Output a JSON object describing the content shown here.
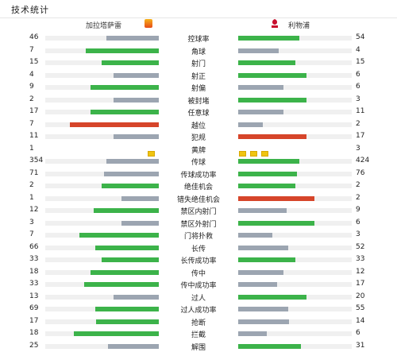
{
  "header": {
    "title": "技术统计"
  },
  "teams": {
    "home": "加拉塔萨雷",
    "away": "利物浦"
  },
  "colors": {
    "green": "#3cb34a",
    "grey": "#9ca5b1",
    "red": "#d6452a",
    "yellow": "#f0c40f"
  },
  "stats": [
    {
      "label": "控球率",
      "home": "46",
      "away": "54",
      "hw": 0.46,
      "aw": 0.54,
      "hc": "grey",
      "ac": "green"
    },
    {
      "label": "角球",
      "home": "7",
      "away": "4",
      "hw": 0.64,
      "aw": 0.36,
      "hc": "green",
      "ac": "grey"
    },
    {
      "label": "射门",
      "home": "15",
      "away": "15",
      "hw": 0.5,
      "aw": 0.5,
      "hc": "green",
      "ac": "green"
    },
    {
      "label": "射正",
      "home": "4",
      "away": "6",
      "hw": 0.4,
      "aw": 0.6,
      "hc": "grey",
      "ac": "green"
    },
    {
      "label": "射偏",
      "home": "9",
      "away": "6",
      "hw": 0.6,
      "aw": 0.4,
      "hc": "green",
      "ac": "grey"
    },
    {
      "label": "被封堵",
      "home": "2",
      "away": "3",
      "hw": 0.4,
      "aw": 0.6,
      "hc": "grey",
      "ac": "green"
    },
    {
      "label": "任意球",
      "home": "17",
      "away": "11",
      "hw": 0.6,
      "aw": 0.4,
      "hc": "green",
      "ac": "grey"
    },
    {
      "label": "越位",
      "home": "7",
      "away": "2",
      "hw": 0.78,
      "aw": 0.22,
      "hc": "red",
      "ac": "grey"
    },
    {
      "label": "犯规",
      "home": "11",
      "away": "17",
      "hw": 0.4,
      "aw": 0.6,
      "hc": "grey",
      "ac": "red"
    },
    {
      "label": "黄牌",
      "home": "1",
      "away": "3",
      "cards": true
    },
    {
      "label": "传球",
      "home": "354",
      "away": "424",
      "hw": 0.46,
      "aw": 0.54,
      "hc": "grey",
      "ac": "green"
    },
    {
      "label": "传球成功率",
      "home": "71",
      "away": "76",
      "hw": 0.48,
      "aw": 0.52,
      "hc": "grey",
      "ac": "green"
    },
    {
      "label": "绝佳机会",
      "home": "2",
      "away": "2",
      "hw": 0.5,
      "aw": 0.5,
      "hc": "green",
      "ac": "green"
    },
    {
      "label": "错失绝佳机会",
      "home": "1",
      "away": "2",
      "hw": 0.33,
      "aw": 0.67,
      "hc": "grey",
      "ac": "red"
    },
    {
      "label": "禁区内射门",
      "home": "12",
      "away": "9",
      "hw": 0.57,
      "aw": 0.43,
      "hc": "green",
      "ac": "grey"
    },
    {
      "label": "禁区外射门",
      "home": "3",
      "away": "6",
      "hw": 0.33,
      "aw": 0.67,
      "hc": "grey",
      "ac": "green"
    },
    {
      "label": "门将扑救",
      "home": "7",
      "away": "3",
      "hw": 0.7,
      "aw": 0.3,
      "hc": "green",
      "ac": "grey"
    },
    {
      "label": "长传",
      "home": "66",
      "away": "52",
      "hw": 0.56,
      "aw": 0.44,
      "hc": "green",
      "ac": "grey"
    },
    {
      "label": "长传成功率",
      "home": "33",
      "away": "33",
      "hw": 0.5,
      "aw": 0.5,
      "hc": "green",
      "ac": "green"
    },
    {
      "label": "传中",
      "home": "18",
      "away": "12",
      "hw": 0.6,
      "aw": 0.4,
      "hc": "green",
      "ac": "grey"
    },
    {
      "label": "传中成功率",
      "home": "33",
      "away": "17",
      "hw": 0.66,
      "aw": 0.34,
      "hc": "green",
      "ac": "grey"
    },
    {
      "label": "过人",
      "home": "13",
      "away": "20",
      "hw": 0.4,
      "aw": 0.6,
      "hc": "grey",
      "ac": "green"
    },
    {
      "label": "过人成功率",
      "home": "69",
      "away": "55",
      "hw": 0.56,
      "aw": 0.44,
      "hc": "green",
      "ac": "grey"
    },
    {
      "label": "抢断",
      "home": "17",
      "away": "14",
      "hw": 0.55,
      "aw": 0.45,
      "hc": "green",
      "ac": "grey"
    },
    {
      "label": "拦截",
      "home": "18",
      "away": "6",
      "hw": 0.75,
      "aw": 0.25,
      "hc": "green",
      "ac": "grey"
    },
    {
      "label": "解围",
      "home": "25",
      "away": "31",
      "hw": 0.45,
      "aw": 0.55,
      "hc": "grey",
      "ac": "green"
    }
  ]
}
